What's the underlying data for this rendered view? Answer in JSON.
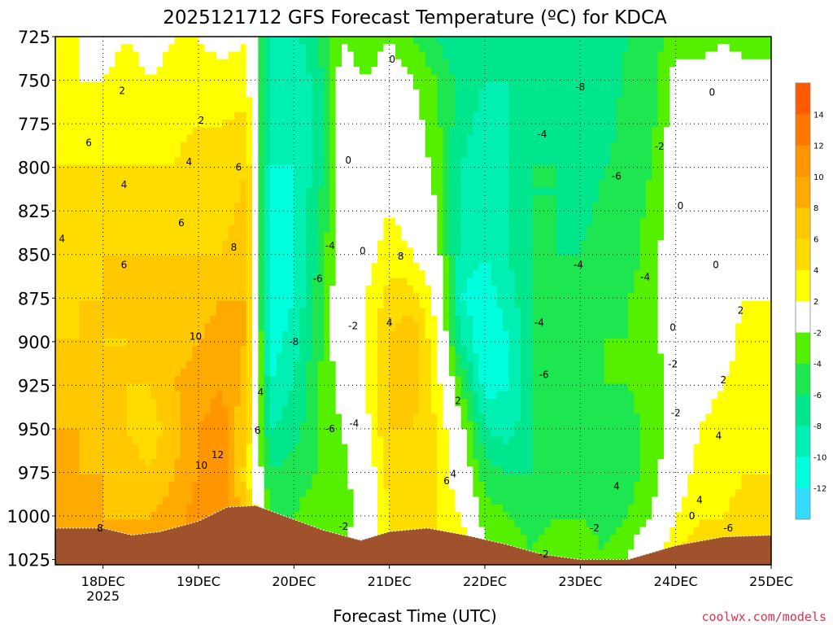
{
  "chart_data": {
    "type": "heatmap",
    "title": "2025121712 GFS Forecast Temperature (ºC) for KDCA",
    "xlabel": "Forecast Time (UTC)",
    "ylabel": "",
    "watermark": "coolwx.com/models",
    "pressure_levels": [
      "725",
      "750",
      "775",
      "800",
      "825",
      "850",
      "875",
      "900",
      "925",
      "950",
      "975",
      "1000",
      "1025"
    ],
    "ylim": [
      725,
      1028
    ],
    "x_range_days": [
      17.5,
      25.0
    ],
    "x_ticks": [
      {
        "day": 18,
        "label": "18DEC",
        "sublabel": "2025"
      },
      {
        "day": 19,
        "label": "19DEC",
        "sublabel": ""
      },
      {
        "day": 20,
        "label": "20DEC",
        "sublabel": ""
      },
      {
        "day": 21,
        "label": "21DEC",
        "sublabel": ""
      },
      {
        "day": 22,
        "label": "22DEC",
        "sublabel": ""
      },
      {
        "day": 23,
        "label": "23DEC",
        "sublabel": ""
      },
      {
        "day": 24,
        "label": "24DEC",
        "sublabel": ""
      },
      {
        "day": 25,
        "label": "25DEC",
        "sublabel": ""
      }
    ],
    "colorbar": {
      "bins": [
        {
          "lo": -14,
          "hi": -12,
          "color": "#33dcff"
        },
        {
          "lo": -12,
          "hi": -10,
          "color": "#00ffdc"
        },
        {
          "lo": -10,
          "hi": -8,
          "color": "#00f0b4"
        },
        {
          "lo": -8,
          "hi": -6,
          "color": "#00e68c"
        },
        {
          "lo": -6,
          "hi": -4,
          "color": "#1ee650"
        },
        {
          "lo": -4,
          "hi": -2,
          "color": "#55f000"
        },
        {
          "lo": -2,
          "hi": 2,
          "color": "#ffffff"
        },
        {
          "lo": 2,
          "hi": 4,
          "color": "#ffff00"
        },
        {
          "lo": 4,
          "hi": 6,
          "color": "#ffdc00"
        },
        {
          "lo": 6,
          "hi": 8,
          "color": "#ffc800"
        },
        {
          "lo": 8,
          "hi": 10,
          "color": "#ffaa00"
        },
        {
          "lo": 10,
          "hi": 12,
          "color": "#ff9600"
        },
        {
          "lo": 12,
          "hi": 14,
          "color": "#ff7800"
        },
        {
          "lo": 14,
          "hi": 16,
          "color": "#ff5a00"
        }
      ],
      "tick_labels": [
        "-12",
        "-10",
        "-8",
        "-6",
        "-4",
        "-2",
        "2",
        "4",
        "6",
        "8",
        "10",
        "12",
        "14"
      ]
    },
    "columns": [
      {
        "day": 17.5,
        "vals": [
          2,
          2,
          4,
          4,
          4,
          6,
          8,
          8,
          8,
          8,
          8
        ]
      },
      {
        "day": 17.75,
        "vals": [
          2,
          2,
          4,
          4,
          6,
          6,
          7,
          8,
          8,
          8,
          8
        ]
      },
      {
        "day": 18.0,
        "vals": [
          1,
          2,
          4,
          6,
          6,
          6,
          6,
          7,
          8,
          8,
          8
        ]
      },
      {
        "day": 18.25,
        "vals": [
          2,
          3,
          4,
          6,
          7,
          6,
          6,
          6,
          7,
          8,
          8
        ]
      },
      {
        "day": 18.5,
        "vals": [
          1,
          2,
          4,
          6,
          6,
          7,
          6,
          5,
          6,
          8,
          8
        ]
      },
      {
        "day": 18.75,
        "vals": [
          2,
          3,
          4,
          6,
          7,
          7,
          8,
          7,
          8,
          9,
          10
        ]
      },
      {
        "day": 19.0,
        "vals": [
          2,
          3,
          5,
          6,
          7,
          8,
          9,
          10,
          10,
          11,
          11
        ]
      },
      {
        "day": 19.25,
        "vals": [
          1,
          3,
          5,
          6,
          8,
          9,
          10,
          11,
          12,
          12,
          13
        ]
      },
      {
        "day": 19.5,
        "vals": [
          2,
          3,
          6,
          7,
          8,
          8,
          7,
          6,
          5,
          6,
          8
        ]
      },
      {
        "day": 19.75,
        "vals": [
          -8,
          -9,
          -10,
          -11,
          -12,
          -11,
          -10,
          -8,
          -6,
          -4,
          -2
        ]
      },
      {
        "day": 20.0,
        "vals": [
          -9,
          -10,
          -10,
          -10,
          -10,
          -9,
          -8,
          -7,
          -5,
          -4,
          -2
        ]
      },
      {
        "day": 20.25,
        "vals": [
          -6,
          -7,
          -7,
          -6,
          -5,
          -5,
          -4,
          -4,
          -4,
          -3,
          -2
        ]
      },
      {
        "day": 20.5,
        "vals": [
          -2,
          -1,
          -1,
          0,
          0,
          0,
          -1,
          -2,
          -3,
          -3,
          -2
        ]
      },
      {
        "day": 20.75,
        "vals": [
          -3,
          -2,
          0,
          1,
          2,
          2,
          2,
          1,
          0,
          -1,
          0
        ]
      },
      {
        "day": 21.0,
        "vals": [
          -2,
          -1,
          1,
          3,
          5,
          6,
          6,
          6,
          5,
          4,
          4
        ]
      },
      {
        "day": 21.25,
        "vals": [
          -4,
          -2,
          0,
          2,
          5,
          8,
          7,
          6,
          6,
          5,
          5
        ]
      },
      {
        "day": 21.5,
        "vals": [
          -6,
          -4,
          -3,
          -1,
          1,
          2,
          3,
          4,
          4,
          4,
          4
        ]
      },
      {
        "day": 21.75,
        "vals": [
          -8,
          -7,
          -8,
          -9,
          -10,
          -8,
          -4,
          -1,
          0,
          2,
          4
        ]
      },
      {
        "day": 22.0,
        "vals": [
          -8,
          -8,
          -9,
          -10,
          -11,
          -12,
          -11,
          -8,
          -5,
          -3,
          -2
        ]
      },
      {
        "day": 22.25,
        "vals": [
          -8,
          -8,
          -8,
          -8,
          -9,
          -10,
          -10,
          -9,
          -6,
          -4,
          -3
        ]
      },
      {
        "day": 22.5,
        "vals": [
          -7,
          -6,
          -6,
          -6,
          -6,
          -6,
          -6,
          -6,
          -6,
          -5,
          -4
        ]
      },
      {
        "day": 22.75,
        "vals": [
          -7,
          -7,
          -6,
          -6,
          -5,
          -5,
          -5,
          -5,
          -5,
          -4,
          -2
        ]
      },
      {
        "day": 23.0,
        "vals": [
          -8,
          -8,
          -7,
          -6,
          -5,
          -5,
          -5,
          -5,
          -5,
          -4,
          -3
        ]
      },
      {
        "day": 23.25,
        "vals": [
          -8,
          -8,
          -6,
          -5,
          -5,
          -4,
          -4,
          -5,
          -5,
          -5,
          -4
        ]
      },
      {
        "day": 23.5,
        "vals": [
          -6,
          -5,
          -5,
          -5,
          -4,
          -4,
          -4,
          -5,
          -5,
          -4,
          -2
        ]
      },
      {
        "day": 23.75,
        "vals": [
          -5,
          -5,
          -4,
          -3,
          -3,
          -3,
          -3,
          -3,
          -3,
          -2,
          0
        ]
      },
      {
        "day": 24.0,
        "vals": [
          -3,
          -1,
          0,
          0,
          0,
          0,
          -1,
          -1,
          0,
          2,
          4
        ]
      },
      {
        "day": 24.25,
        "vals": [
          -3,
          -1,
          0,
          0,
          0,
          0,
          1,
          2,
          3,
          4,
          5
        ]
      },
      {
        "day": 24.5,
        "vals": [
          -2,
          -1,
          0,
          0,
          1,
          1,
          2,
          3,
          3,
          4,
          6
        ]
      },
      {
        "day": 24.75,
        "vals": [
          -3,
          -1,
          0,
          1,
          2,
          3,
          3,
          3,
          4,
          5,
          6
        ]
      },
      {
        "day": 25.0,
        "vals": [
          -3,
          -1,
          0,
          1,
          2,
          3,
          3,
          3,
          4,
          5,
          6
        ]
      }
    ],
    "column_levels": [
      725,
      750,
      800,
      850,
      875,
      900,
      925,
      950,
      975,
      1000,
      1020
    ],
    "contour_labels": [
      {
        "day": 17.85,
        "p": 786,
        "text": "6"
      },
      {
        "day": 17.57,
        "p": 841,
        "text": "4"
      },
      {
        "day": 18.2,
        "p": 756,
        "text": "2"
      },
      {
        "day": 18.22,
        "p": 810,
        "text": "4"
      },
      {
        "day": 18.22,
        "p": 856,
        "text": "6"
      },
      {
        "day": 18.82,
        "p": 832,
        "text": "6"
      },
      {
        "day": 18.97,
        "p": 897,
        "text": "10"
      },
      {
        "day": 19.03,
        "p": 773,
        "text": "2"
      },
      {
        "day": 18.9,
        "p": 797,
        "text": "4"
      },
      {
        "day": 19.42,
        "p": 800,
        "text": "6"
      },
      {
        "day": 19.37,
        "p": 846,
        "text": "8"
      },
      {
        "day": 19.65,
        "p": 929,
        "text": "4"
      },
      {
        "day": 19.62,
        "p": 951,
        "text": "6"
      },
      {
        "day": 19.2,
        "p": 965,
        "text": "12"
      },
      {
        "day": 19.03,
        "p": 971,
        "text": "10"
      },
      {
        "day": 17.97,
        "p": 1007,
        "text": "8"
      },
      {
        "day": 20.0,
        "p": 900,
        "text": "-8"
      },
      {
        "day": 20.38,
        "p": 845,
        "text": "-4"
      },
      {
        "day": 20.25,
        "p": 864,
        "text": "-6"
      },
      {
        "day": 20.38,
        "p": 950,
        "text": "-6"
      },
      {
        "day": 20.63,
        "p": 947,
        "text": "-4"
      },
      {
        "day": 20.62,
        "p": 891,
        "text": "-2"
      },
      {
        "day": 20.52,
        "p": 1006,
        "text": "-2"
      },
      {
        "day": 20.57,
        "p": 796,
        "text": "0"
      },
      {
        "day": 20.72,
        "p": 848,
        "text": "0"
      },
      {
        "day": 21.03,
        "p": 738,
        "text": "0"
      },
      {
        "day": 21.12,
        "p": 851,
        "text": "8"
      },
      {
        "day": 21.0,
        "p": 889,
        "text": "4"
      },
      {
        "day": 21.72,
        "p": 934,
        "text": "2"
      },
      {
        "day": 21.67,
        "p": 976,
        "text": "4"
      },
      {
        "day": 21.6,
        "p": 980,
        "text": "6"
      },
      {
        "day": 22.6,
        "p": 781,
        "text": "-4"
      },
      {
        "day": 23.0,
        "p": 754,
        "text": "-8"
      },
      {
        "day": 23.38,
        "p": 805,
        "text": "-6"
      },
      {
        "day": 22.98,
        "p": 856,
        "text": "-4"
      },
      {
        "day": 22.57,
        "p": 889,
        "text": "-4"
      },
      {
        "day": 22.62,
        "p": 919,
        "text": "-6"
      },
      {
        "day": 23.83,
        "p": 788,
        "text": "-2"
      },
      {
        "day": 23.68,
        "p": 863,
        "text": "-4"
      },
      {
        "day": 24.05,
        "p": 822,
        "text": "0"
      },
      {
        "day": 24.38,
        "p": 757,
        "text": "0"
      },
      {
        "day": 24.42,
        "p": 856,
        "text": "0"
      },
      {
        "day": 24.68,
        "p": 882,
        "text": "2"
      },
      {
        "day": 23.97,
        "p": 892,
        "text": "0"
      },
      {
        "day": 23.97,
        "p": 913,
        "text": "-2"
      },
      {
        "day": 24.0,
        "p": 941,
        "text": "-2"
      },
      {
        "day": 24.5,
        "p": 922,
        "text": "2"
      },
      {
        "day": 24.45,
        "p": 954,
        "text": "4"
      },
      {
        "day": 24.25,
        "p": 991,
        "text": "4"
      },
      {
        "day": 23.38,
        "p": 983,
        "text": "4"
      },
      {
        "day": 23.15,
        "p": 1007,
        "text": "-2"
      },
      {
        "day": 22.62,
        "p": 1022,
        "text": "-2"
      },
      {
        "day": 24.17,
        "p": 1000,
        "text": "0"
      },
      {
        "day": 24.55,
        "p": 1007,
        "text": "-6"
      }
    ],
    "terrain": {
      "color": "#a0522d",
      "surface_pressure": [
        {
          "day": 17.5,
          "p": 1007
        },
        {
          "day": 18.0,
          "p": 1007
        },
        {
          "day": 18.3,
          "p": 1011
        },
        {
          "day": 18.6,
          "p": 1009
        },
        {
          "day": 19.0,
          "p": 1003
        },
        {
          "day": 19.3,
          "p": 995
        },
        {
          "day": 19.6,
          "p": 994
        },
        {
          "day": 19.9,
          "p": 1000
        },
        {
          "day": 20.3,
          "p": 1008
        },
        {
          "day": 20.7,
          "p": 1014
        },
        {
          "day": 21.0,
          "p": 1009
        },
        {
          "day": 21.4,
          "p": 1007
        },
        {
          "day": 21.8,
          "p": 1011
        },
        {
          "day": 22.2,
          "p": 1016
        },
        {
          "day": 22.6,
          "p": 1022
        },
        {
          "day": 23.0,
          "p": 1025
        },
        {
          "day": 23.5,
          "p": 1025
        },
        {
          "day": 24.0,
          "p": 1017
        },
        {
          "day": 24.5,
          "p": 1012
        },
        {
          "day": 25.0,
          "p": 1011
        }
      ]
    }
  }
}
